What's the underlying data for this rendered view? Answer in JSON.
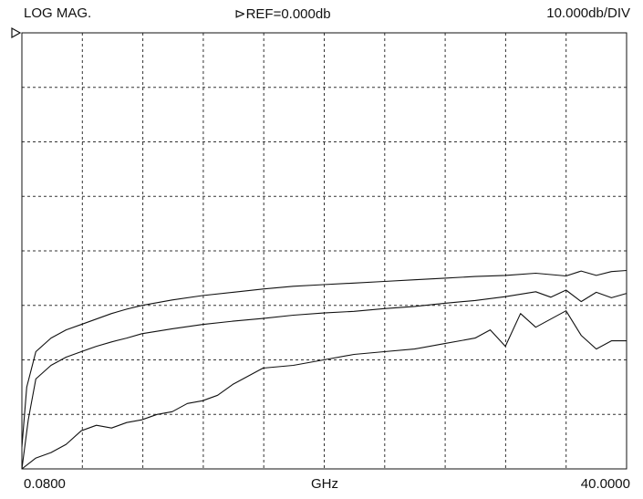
{
  "header": {
    "format": "LOG MAG.",
    "reference": "⊳REF=0.000db",
    "scale": "10.000db/DIV"
  },
  "footer": {
    "start": "0.0800",
    "unit": "GHz",
    "stop": "40.0000"
  },
  "chart_data": {
    "type": "line",
    "xlabel": "GHz",
    "x_start": 0.08,
    "x_stop": 40.0,
    "x_scale": "linear",
    "ylabel": "",
    "ylim": [
      -80,
      0
    ],
    "reference_level_db": 0,
    "db_per_division": 10,
    "grid": true,
    "series": [
      {
        "x": [
          0.08,
          0.4,
          1.0,
          2.0,
          3.0,
          4.0,
          5.0,
          6.0,
          7.0,
          8.0,
          10.0,
          12.0,
          14.0,
          16.0,
          18.0,
          20.0,
          22.0,
          24.0,
          26.0,
          28.0,
          30.0,
          32.0,
          34.0,
          36.0,
          37.0,
          38.0,
          39.0,
          40.0
        ],
        "y": [
          -76,
          -65,
          -58.5,
          -56,
          -54.5,
          -53.5,
          -52.5,
          -51.5,
          -50.7,
          -50,
          -49,
          -48.2,
          -47.6,
          -47,
          -46.5,
          -46.2,
          -45.9,
          -45.6,
          -45.3,
          -45.0,
          -44.7,
          -44.5,
          -44.1,
          -44.6,
          -43.7,
          -44.5,
          -43.8,
          -43.6
        ]
      },
      {
        "x": [
          0.08,
          0.5,
          1.0,
          2.0,
          3.0,
          4.0,
          5.0,
          6.0,
          7.0,
          8.0,
          10.0,
          12.0,
          14.0,
          16.0,
          18.0,
          20.0,
          22.0,
          24.0,
          26.0,
          28.0,
          30.0,
          32.0,
          34.0,
          35.0,
          36.0,
          37.0,
          38.0,
          39.0,
          40.0
        ],
        "y": [
          -80,
          -71,
          -63.5,
          -61,
          -59.5,
          -58.5,
          -57.5,
          -56.7,
          -56,
          -55.2,
          -54.3,
          -53.5,
          -52.9,
          -52.4,
          -51.8,
          -51.4,
          -51.1,
          -50.6,
          -50.2,
          -49.6,
          -49.1,
          -48.4,
          -47.5,
          -48.5,
          -47.2,
          -49.3,
          -47.6,
          -48.6,
          -47.8
        ]
      },
      {
        "x": [
          0.08,
          1.0,
          2.0,
          3.0,
          4.0,
          5.0,
          6.0,
          7.0,
          8.0,
          9.0,
          10.0,
          11.0,
          12.0,
          13.0,
          14.0,
          16.0,
          18.0,
          20.0,
          22.0,
          24.0,
          26.0,
          28.0,
          30.0,
          31.0,
          32.0,
          33.0,
          34.0,
          35.0,
          36.0,
          37.0,
          38.0,
          39.0,
          40.0
        ],
        "y": [
          -80,
          -78,
          -77,
          -75.5,
          -73,
          -72,
          -72.5,
          -71.5,
          -71,
          -70,
          -69.5,
          -68,
          -67.5,
          -66.5,
          -64.5,
          -61.5,
          -61,
          -60,
          -59,
          -58.5,
          -58,
          -57,
          -56,
          -54.5,
          -57.5,
          -51.5,
          -54,
          -52.5,
          -51,
          -55.5,
          -58,
          -56.5,
          -56.5
        ]
      }
    ]
  }
}
